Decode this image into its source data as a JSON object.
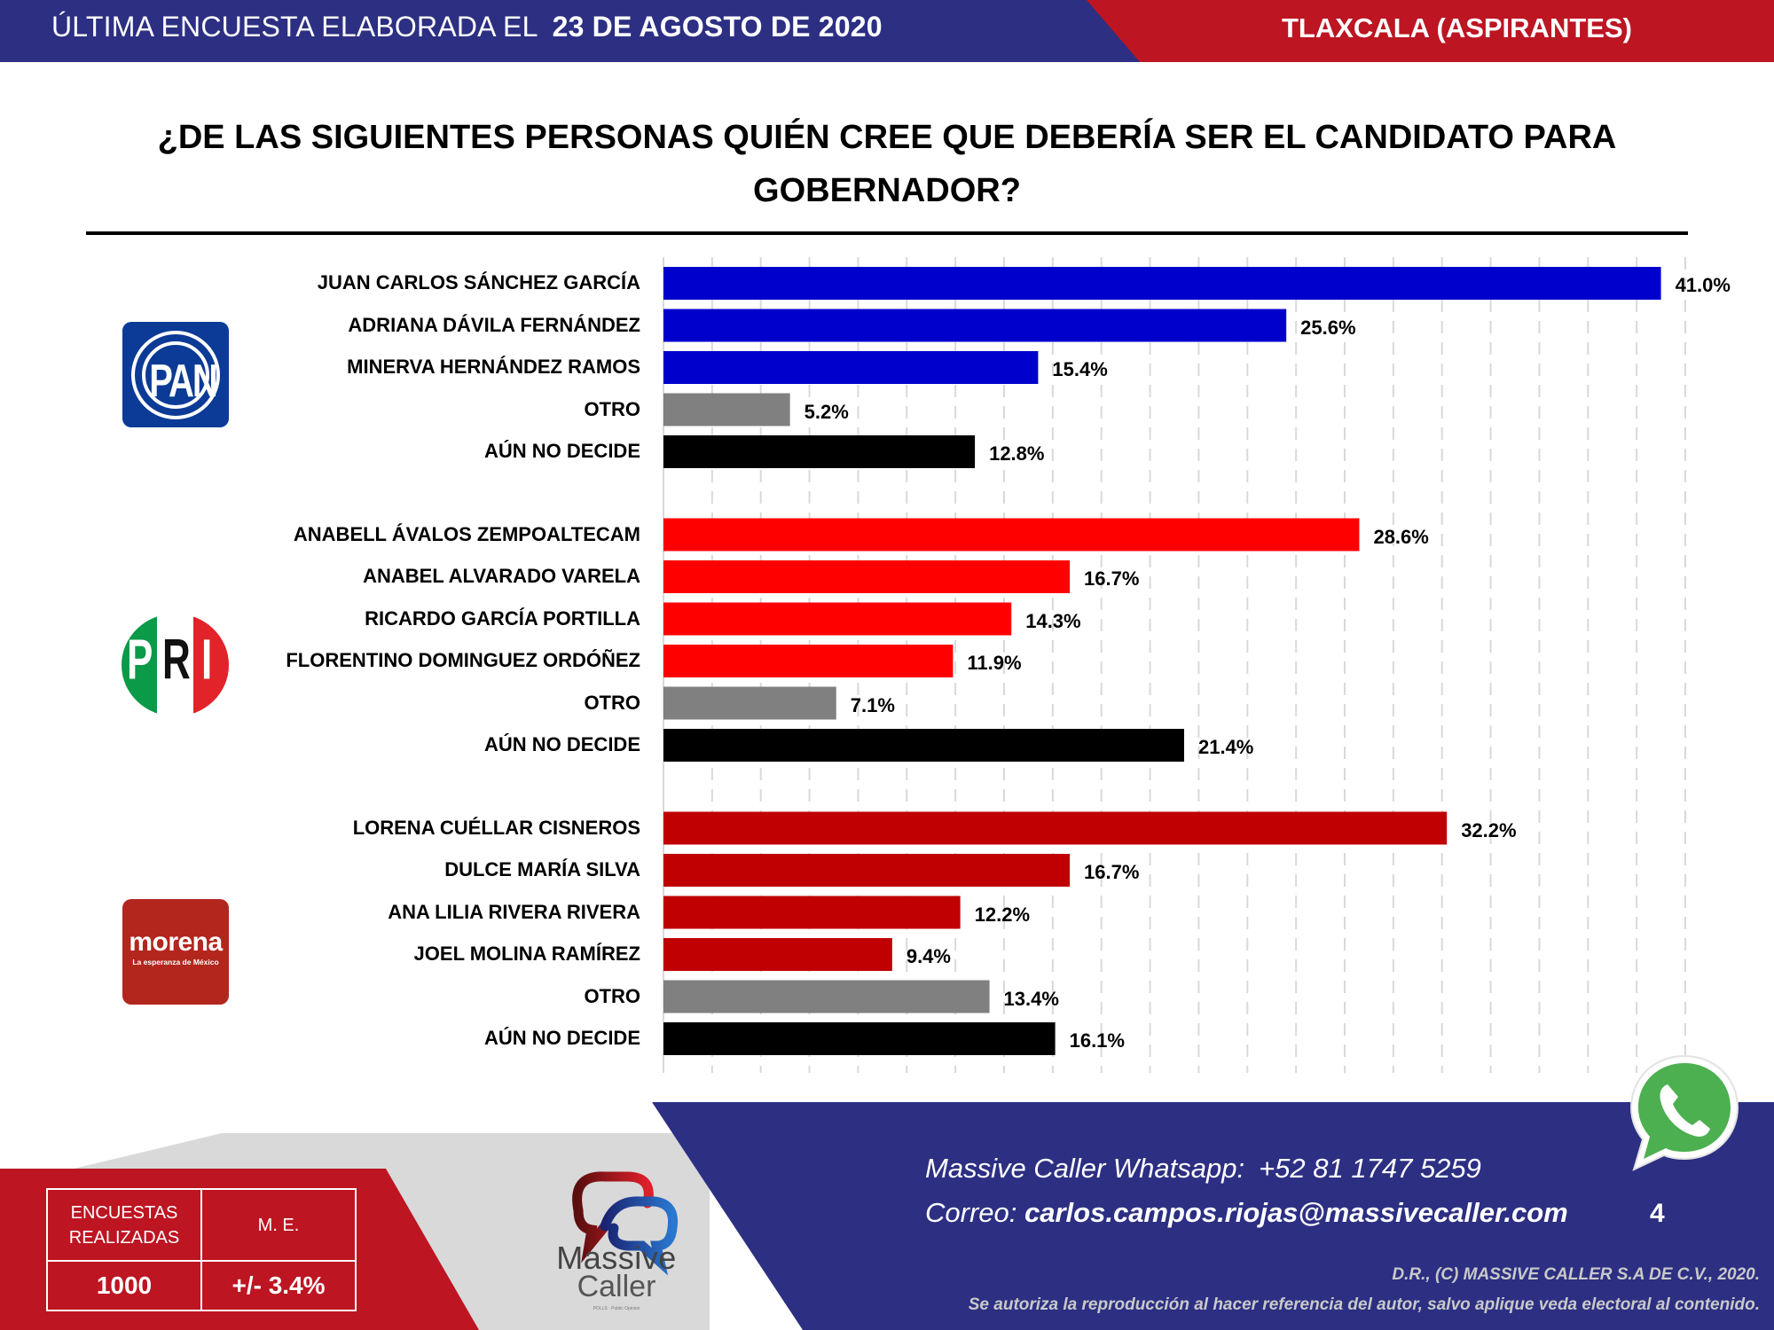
{
  "header": {
    "survey_prefix": "ÚLTIMA ENCUESTA ELABORADA EL",
    "survey_date": "23 DE AGOSTO DE 2020",
    "region": "TLAXCALA (ASPIRANTES)",
    "colors": {
      "blue": "#2c2f82",
      "red": "#bd1522"
    }
  },
  "question": "¿DE LAS SIGUIENTES PERSONAS QUIÉN CREE QUE DEBERÍA SER EL CANDIDATO PARA GOBERNADOR?",
  "logos": {
    "pan": {
      "text": "PAN"
    },
    "pri": {
      "letters": [
        "P",
        "R",
        "I"
      ]
    },
    "morena": {
      "name": "morena",
      "tagline": "La esperanza de México"
    }
  },
  "chart_data": {
    "type": "bar",
    "orientation": "horizontal",
    "title": "¿DE LAS SIGUIENTES PERSONAS QUIÉN CREE QUE DEBERÍA SER EL CANDIDATO PARA GOBERNADOR?",
    "xlabel": "",
    "ylabel": "",
    "xlim": [
      0,
      42
    ],
    "grid": "vertical-dashed",
    "grid_step": 2,
    "value_format": "percent-1dp",
    "groups": [
      {
        "party": "PAN",
        "bars": [
          {
            "label": "JUAN CARLOS SÁNCHEZ GARCÍA",
            "value": 41.0,
            "display": "41.0%",
            "color": "#0000cc"
          },
          {
            "label": "ADRIANA DÁVILA FERNÁNDEZ",
            "value": 25.6,
            "display": "25.6%",
            "color": "#0000cc"
          },
          {
            "label": "MINERVA HERNÁNDEZ RAMOS",
            "value": 15.4,
            "display": "15.4%",
            "color": "#0000cc"
          },
          {
            "label": "OTRO",
            "value": 5.2,
            "display": "5.2%",
            "color": "#808080"
          },
          {
            "label": "AÚN NO DECIDE",
            "value": 12.8,
            "display": "12.8%",
            "color": "#000000"
          }
        ]
      },
      {
        "party": "PRI",
        "bars": [
          {
            "label": "ANABELL ÁVALOS ZEMPOALTECAM",
            "value": 28.6,
            "display": "28.6%",
            "color": "#ff0000"
          },
          {
            "label": "ANABEL ALVARADO VARELA",
            "value": 16.7,
            "display": "16.7%",
            "color": "#ff0000"
          },
          {
            "label": "RICARDO GARCÍA PORTILLA",
            "value": 14.3,
            "display": "14.3%",
            "color": "#ff0000"
          },
          {
            "label": "FLORENTINO DOMINGUEZ ORDÓÑEZ",
            "value": 11.9,
            "display": "11.9%",
            "color": "#ff0000"
          },
          {
            "label": "OTRO",
            "value": 7.1,
            "display": "7.1%",
            "color": "#808080"
          },
          {
            "label": "AÚN NO DECIDE",
            "value": 21.4,
            "display": "21.4%",
            "color": "#000000"
          }
        ]
      },
      {
        "party": "MORENA",
        "bars": [
          {
            "label": "LORENA CUÉLLAR CISNEROS",
            "value": 32.2,
            "display": "32.2%",
            "color": "#c00000"
          },
          {
            "label": "DULCE MARÍA SILVA",
            "value": 16.7,
            "display": "16.7%",
            "color": "#c00000"
          },
          {
            "label": "ANA LILIA RIVERA RIVERA",
            "value": 12.2,
            "display": "12.2%",
            "color": "#c00000"
          },
          {
            "label": "JOEL MOLINA RAMÍREZ",
            "value": 9.4,
            "display": "9.4%",
            "color": "#c00000"
          },
          {
            "label": "OTRO",
            "value": 13.4,
            "display": "13.4%",
            "color": "#808080"
          },
          {
            "label": "AÚN NO DECIDE",
            "value": 16.1,
            "display": "16.1%",
            "color": "#000000"
          }
        ]
      }
    ]
  },
  "footer": {
    "stats": {
      "surveys_label": "ENCUESTAS REALIZADAS",
      "surveys_value": "1000",
      "me_label": "M. E.",
      "me_value": "+/- 3.4%"
    },
    "brand": {
      "line1": "Massive",
      "line2": "Caller",
      "tagline": "POLLS · Public Opinion"
    },
    "whatsapp_label": "Massive Caller Whatsapp:",
    "whatsapp_number": "+52 81 1747 5259",
    "email_label": "Correo:",
    "email": "carlos.campos.riojas@massivecaller.com",
    "page_number": "4",
    "copyright": "D.R., (C) MASSIVE CALLER S.A DE C.V., 2020.",
    "disclaimer": "Se autoriza la reproducción al hacer referencia del autor, salvo aplique veda electoral al contenido."
  }
}
